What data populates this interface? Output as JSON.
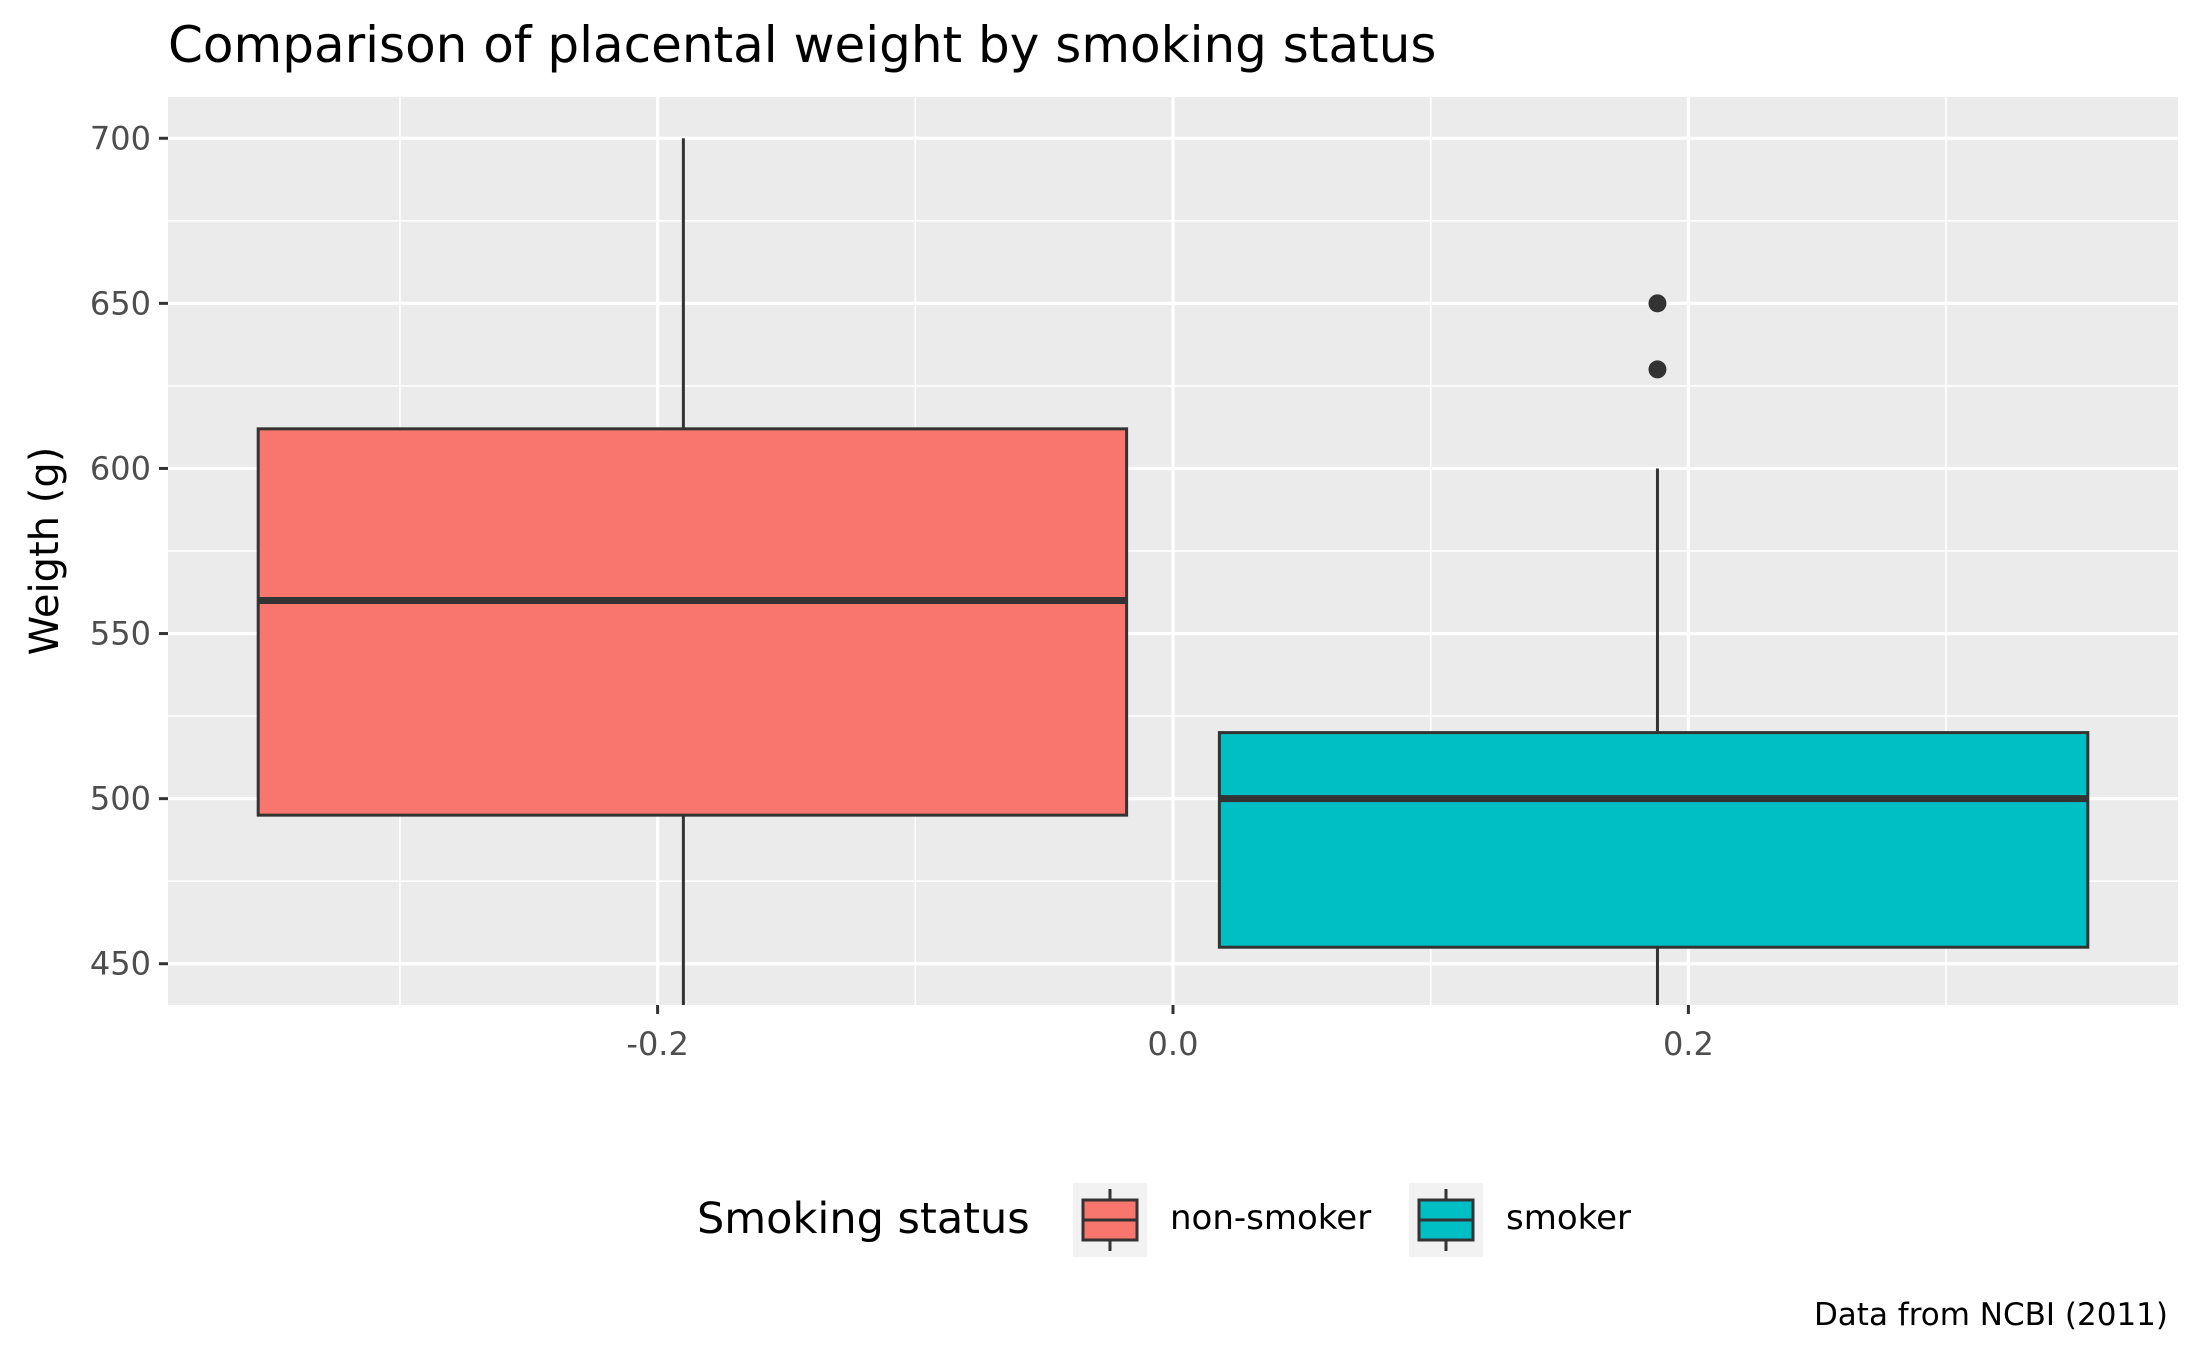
{
  "chart_data": {
    "type": "boxplot",
    "title": "Comparison of placental weight by smoking status",
    "xlabel": "",
    "ylabel": "Weigth (g)",
    "caption": "Data from NCBI (2011)",
    "xlim": [
      -0.39,
      0.39
    ],
    "ylim": [
      437.5,
      712.5
    ],
    "x_ticks": [
      "-0.2",
      "0.0",
      "0.2"
    ],
    "x_tick_values": [
      -0.2,
      0.0,
      0.2
    ],
    "y_ticks": [
      "450",
      "500",
      "550",
      "600",
      "650",
      "700"
    ],
    "y_tick_values": [
      450,
      500,
      550,
      600,
      650,
      700
    ],
    "grid": true,
    "legend": {
      "title": "Smoking status",
      "position": "bottom",
      "entries": [
        "non-smoker",
        "smoker"
      ]
    },
    "series": [
      {
        "name": "non-smoker",
        "color": "#F8766D",
        "x_center": -0.19,
        "x_left": -0.355,
        "x_right": -0.018,
        "whisker_low": 437.5,
        "q1": 495,
        "median": 560,
        "q3": 612,
        "whisker_high": 700,
        "outliers": []
      },
      {
        "name": "smoker",
        "color": "#00BFC4",
        "x_center": 0.188,
        "x_left": 0.018,
        "x_right": 0.355,
        "whisker_low": 437.5,
        "q1": 455,
        "median": 500,
        "q3": 520,
        "whisker_high": 600,
        "outliers": [
          630,
          650
        ]
      }
    ],
    "colors": {
      "panel_background": "#EBEBEB",
      "grid": "#FFFFFF",
      "box_outline": "#333333",
      "legend_key_background": "#F2F2F2"
    }
  }
}
